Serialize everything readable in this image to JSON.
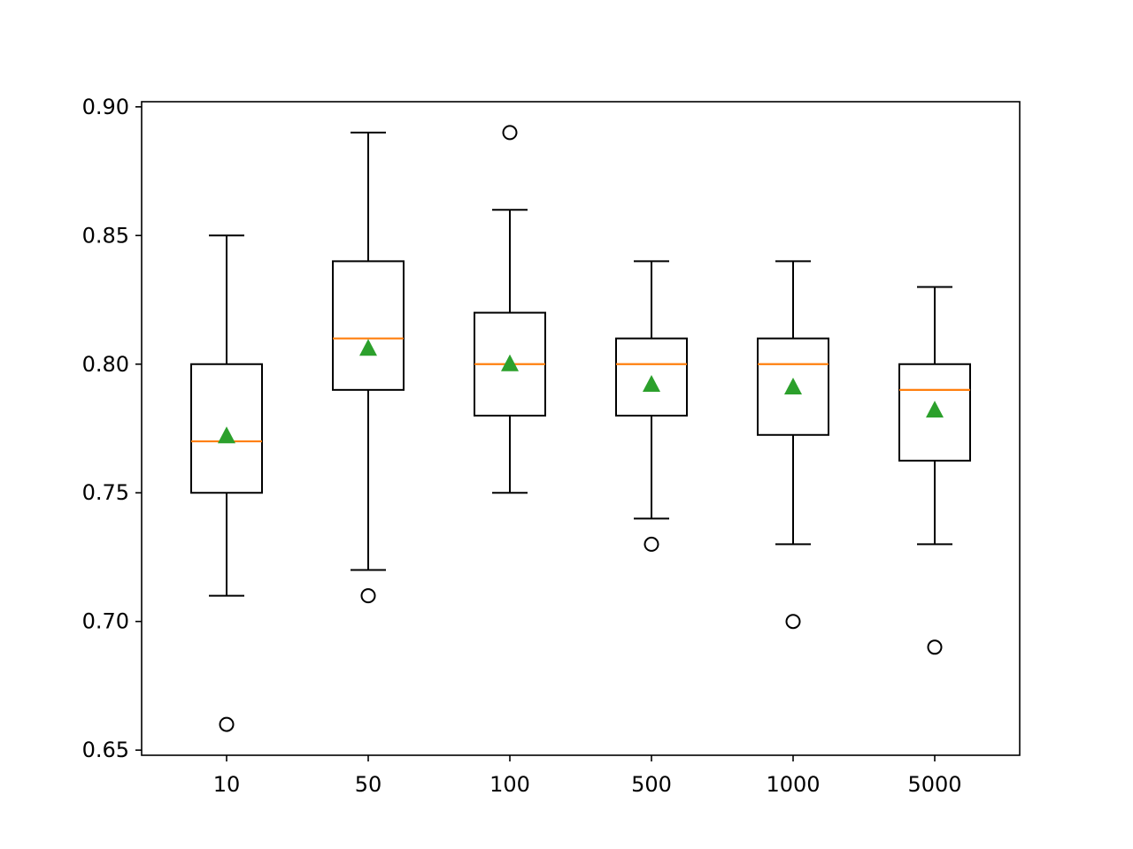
{
  "chart_data": {
    "type": "box",
    "title": "",
    "xlabel": "",
    "ylabel": "",
    "ylim": [
      0.648,
      0.902
    ],
    "y_ticks": [
      "0.65",
      "0.70",
      "0.75",
      "0.80",
      "0.85",
      "0.90"
    ],
    "categories": [
      "10",
      "50",
      "100",
      "500",
      "1000",
      "5000"
    ],
    "boxes": [
      {
        "category": "10",
        "whisker_low": 0.71,
        "q1": 0.75,
        "median": 0.77,
        "q3": 0.8,
        "whisker_high": 0.85,
        "mean": 0.772,
        "outliers": [
          0.66
        ]
      },
      {
        "category": "50",
        "whisker_low": 0.72,
        "q1": 0.79,
        "median": 0.81,
        "q3": 0.84,
        "whisker_high": 0.89,
        "mean": 0.806,
        "outliers": [
          0.71
        ]
      },
      {
        "category": "100",
        "whisker_low": 0.75,
        "q1": 0.78,
        "median": 0.8,
        "q3": 0.82,
        "whisker_high": 0.86,
        "mean": 0.8,
        "outliers": [
          0.89
        ]
      },
      {
        "category": "500",
        "whisker_low": 0.74,
        "q1": 0.78,
        "median": 0.8,
        "q3": 0.81,
        "whisker_high": 0.84,
        "mean": 0.792,
        "outliers": [
          0.73
        ]
      },
      {
        "category": "1000",
        "whisker_low": 0.73,
        "q1": 0.7725,
        "median": 0.8,
        "q3": 0.81,
        "whisker_high": 0.84,
        "mean": 0.791,
        "outliers": [
          0.7
        ]
      },
      {
        "category": "5000",
        "whisker_low": 0.73,
        "q1": 0.7625,
        "median": 0.79,
        "q3": 0.8,
        "whisker_high": 0.83,
        "mean": 0.782,
        "outliers": [
          0.69
        ]
      }
    ],
    "grid": false,
    "legend": "none",
    "colors": {
      "box": "#000000",
      "median": "#ff7f0e",
      "mean": "#2ca02c",
      "outlier": "#000000"
    }
  }
}
